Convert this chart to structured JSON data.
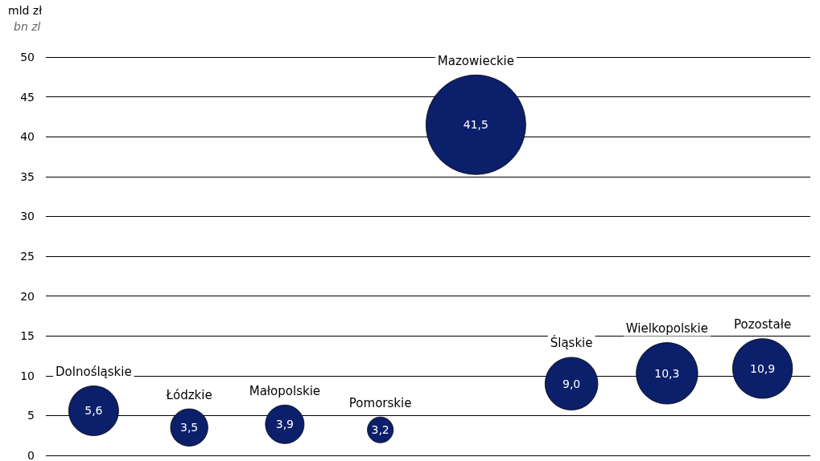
{
  "chart_data": {
    "type": "bubble",
    "ylabel": "mld zł",
    "annotations": [
      "bn zl"
    ],
    "categories": [
      "Dolnośląskie",
      "Łódzkie",
      "Małopolskie",
      "Pomorskie",
      "Mazowieckie",
      "Śląskie",
      "Wielkopolskie",
      "Pozostałe"
    ],
    "values": [
      5.6,
      3.5,
      3.9,
      3.2,
      41.5,
      9.0,
      10.3,
      10.9
    ],
    "sizes": [
      0.25,
      0.14,
      0.15,
      0.067,
      1,
      0.28,
      0.38,
      0.36
    ],
    "color": "#0c1f6b",
    "value_labels": [
      "5,6",
      "3,5",
      "3,9",
      "3,2",
      "41,5",
      "9,0",
      "10,3",
      "10,9"
    ],
    "ylim": [
      0,
      50
    ],
    "yticks": [
      0,
      5,
      10,
      15,
      20,
      25,
      30,
      35,
      40,
      45,
      50
    ],
    "grid": "y",
    "tick_labels": "y"
  }
}
